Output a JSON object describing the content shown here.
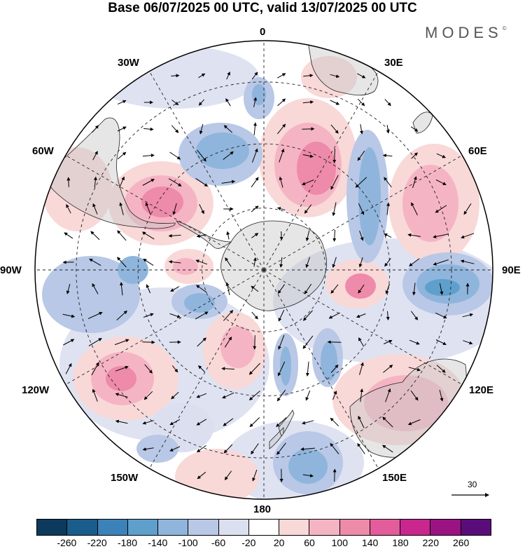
{
  "title": "Base 06/07/2025 00 UTC, valid 13/07/2025 00 UTC",
  "brand": "MODES",
  "brand_mark": "©",
  "longitude_labels": {
    "lon_0": "0",
    "lon_30e": "30E",
    "lon_60e": "60E",
    "lon_90e": "90E",
    "lon_120e": "120E",
    "lon_150e": "150E",
    "lon_180": "180",
    "lon_150w": "150W",
    "lon_120w": "120W",
    "lon_90w": "90W",
    "lon_60w": "60W",
    "lon_30w": "30W"
  },
  "reference_vector": {
    "value": "30"
  },
  "colorbar": {
    "colors": [
      "#0d3a5c",
      "#1a5c8c",
      "#3a82b8",
      "#5f9fcc",
      "#8fb5dc",
      "#b8c8e6",
      "#dcdff0",
      "#ffffff",
      "#f9d8d8",
      "#f5b4c4",
      "#ee8aaa",
      "#e35c9c",
      "#c9268e",
      "#9b1283",
      "#5a0d7a"
    ],
    "ticks": [
      "-260",
      "-220",
      "-180",
      "-140",
      "-100",
      "-60",
      "-20",
      "20",
      "60",
      "100",
      "140",
      "180",
      "220",
      "260"
    ]
  },
  "map": {
    "projection": "south polar stereographic",
    "anomaly_features": [
      {
        "sign": "positive",
        "intensity": "strong",
        "region": "south Atlantic 45W"
      },
      {
        "sign": "positive",
        "intensity": "strong",
        "region": "south Atlantic 15E"
      },
      {
        "sign": "negative",
        "intensity": "moderate",
        "region": "south Atlantic 15W"
      },
      {
        "sign": "negative",
        "intensity": "moderate",
        "region": "Indian Ocean 40E"
      },
      {
        "sign": "positive",
        "intensity": "moderate",
        "region": "Indian Ocean 70E"
      },
      {
        "sign": "negative",
        "intensity": "strong",
        "region": "Indian Ocean 95E"
      },
      {
        "sign": "positive",
        "intensity": "strong",
        "region": "Pacific 120W"
      },
      {
        "sign": "positive",
        "intensity": "moderate",
        "region": "Australia 130E"
      },
      {
        "sign": "negative",
        "intensity": "moderate",
        "region": "Pacific 165E"
      }
    ]
  }
}
